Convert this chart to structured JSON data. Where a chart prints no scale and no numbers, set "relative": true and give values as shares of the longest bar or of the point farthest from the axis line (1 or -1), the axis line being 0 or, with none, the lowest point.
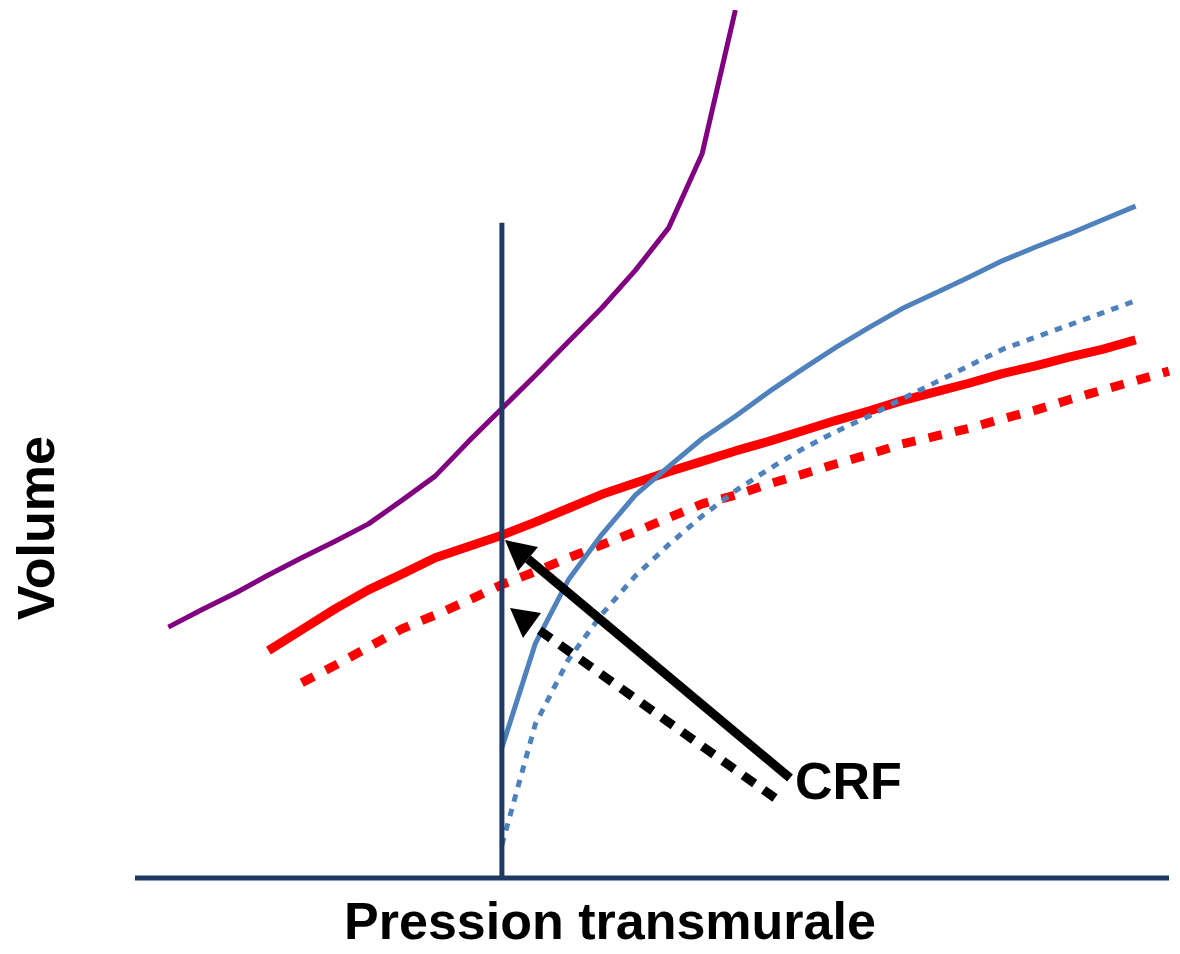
{
  "chart_data": {
    "type": "line",
    "xlabel": "Pression transmurale",
    "ylabel": "Volume",
    "relative": true,
    "tick_labels": false,
    "grid": false,
    "marker": "none",
    "categories": [
      null,
      null,
      null,
      null,
      null,
      null,
      null,
      null,
      null,
      null,
      null,
      null,
      null,
      null,
      null,
      null,
      null,
      null,
      null,
      null,
      null,
      null,
      null,
      null,
      null,
      null,
      null,
      null,
      null,
      null,
      null,
      null
    ],
    "series": [
      {
        "color": "#800080",
        "line_style": "solid",
        "values": [
          null,
          0.289,
          0.309,
          0.328,
          0.349,
          0.369,
          0.388,
          0.408,
          0.435,
          0.463,
          0.503,
          0.541,
          0.579,
          0.618,
          0.657,
          0.7,
          0.749,
          0.834,
          1,
          null,
          null,
          null,
          null,
          null,
          null,
          null,
          null,
          null,
          null,
          null,
          null,
          null
        ]
      },
      {
        "color": "#4f81bd",
        "line_style": "solid",
        "values": [
          null,
          null,
          null,
          null,
          null,
          null,
          null,
          null,
          null,
          null,
          null,
          0.15,
          0.27,
          0.344,
          0.396,
          0.441,
          0.474,
          0.506,
          0.532,
          0.56,
          0.586,
          0.611,
          0.634,
          0.656,
          0.674,
          0.692,
          0.711,
          0.727,
          0.742,
          0.758,
          0.774,
          null
        ]
      },
      {
        "color": "#4f81bd",
        "line_style": "dotted",
        "values": [
          null,
          null,
          null,
          null,
          null,
          null,
          null,
          null,
          null,
          null,
          null,
          0.038,
          0.177,
          0.252,
          0.304,
          0.348,
          0.384,
          0.417,
          0.446,
          0.471,
          0.494,
          0.514,
          0.532,
          0.552,
          0.571,
          0.59,
          0.609,
          0.623,
          0.637,
          0.651,
          0.665,
          null
        ]
      },
      {
        "color": "#ff0000",
        "line_style": "solid",
        "values": [
          null,
          null,
          null,
          null,
          0.262,
          0.286,
          0.31,
          0.332,
          0.35,
          0.369,
          0.382,
          0.395,
          0.41,
          0.426,
          0.442,
          0.455,
          0.468,
          0.48,
          0.492,
          0.503,
          0.515,
          0.527,
          0.538,
          0.55,
          0.56,
          0.57,
          0.581,
          0.59,
          0.6,
          0.609,
          0.62,
          null
        ]
      },
      {
        "color": "#ff0000",
        "line_style": "dotted",
        "values": [
          null,
          null,
          null,
          null,
          null,
          0.225,
          0.245,
          0.266,
          0.287,
          0.303,
          0.32,
          0.338,
          0.353,
          0.369,
          0.384,
          0.399,
          0.415,
          0.431,
          0.441,
          0.454,
          0.465,
          0.477,
          0.488,
          0.5,
          0.509,
          0.518,
          0.529,
          0.539,
          0.551,
          0.562,
          0.573,
          0.584
        ]
      }
    ],
    "annotations": [
      "CRF"
    ]
  }
}
